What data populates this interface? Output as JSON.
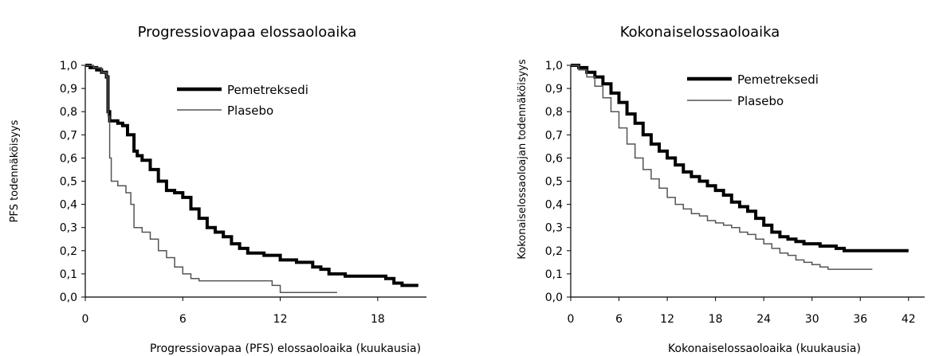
{
  "chart_data": [
    {
      "type": "line",
      "title": "Progressiovapaa elossaoloaika",
      "xlabel": "Progressiovapaa (PFS) elossaoloaika (kuukausia)",
      "ylabel": "PFS todennäköisyys",
      "xlim": [
        0,
        21
      ],
      "ylim": [
        0,
        1
      ],
      "x_ticks": [
        0,
        6,
        12,
        18
      ],
      "x_tick_labels": [
        "0",
        "6",
        "12",
        "18"
      ],
      "y_ticks": [
        0,
        0.1,
        0.2,
        0.3,
        0.4,
        0.5,
        0.6,
        0.7,
        0.8,
        0.9,
        1.0
      ],
      "y_tick_labels": [
        "0,0",
        "0,1",
        "0,2",
        "0,3",
        "0,4",
        "0,5",
        "0,6",
        "0,7",
        "0,8",
        "0,9",
        "1,0"
      ],
      "grid": false,
      "legend_position": "top-right",
      "step": true,
      "series": [
        {
          "name": "Pemetreksedi",
          "color": "#000000",
          "width": "thick",
          "x": [
            0,
            0.3,
            0.7,
            1.0,
            1.3,
            1.4,
            1.5,
            2.0,
            2.3,
            2.6,
            3.0,
            3.2,
            3.5,
            4.0,
            4.5,
            5.0,
            5.5,
            6.0,
            6.5,
            7.0,
            7.5,
            8.0,
            8.5,
            9.0,
            9.5,
            10.0,
            11.0,
            12.0,
            13.0,
            14.0,
            14.5,
            15.0,
            16.0,
            17.0,
            18.0,
            18.5,
            19.0,
            19.5,
            20.5
          ],
          "y": [
            1.0,
            0.99,
            0.98,
            0.97,
            0.95,
            0.8,
            0.76,
            0.75,
            0.74,
            0.7,
            0.63,
            0.61,
            0.59,
            0.55,
            0.5,
            0.46,
            0.45,
            0.43,
            0.38,
            0.34,
            0.3,
            0.28,
            0.26,
            0.23,
            0.21,
            0.19,
            0.18,
            0.16,
            0.15,
            0.13,
            0.12,
            0.1,
            0.09,
            0.09,
            0.09,
            0.08,
            0.06,
            0.05,
            0.05
          ]
        },
        {
          "name": "Plasebo",
          "color": "#555555",
          "width": "thin",
          "x": [
            0,
            0.5,
            1.0,
            1.3,
            1.4,
            1.5,
            1.6,
            2.0,
            2.5,
            2.8,
            3.0,
            3.5,
            4.0,
            4.5,
            5.0,
            5.5,
            6.0,
            6.5,
            7.0,
            8.0,
            9.0,
            10.0,
            11.5,
            12.0,
            12.5,
            15.5
          ],
          "y": [
            1.0,
            0.99,
            0.97,
            0.95,
            0.78,
            0.6,
            0.5,
            0.48,
            0.45,
            0.4,
            0.3,
            0.28,
            0.25,
            0.2,
            0.17,
            0.13,
            0.1,
            0.08,
            0.07,
            0.07,
            0.07,
            0.07,
            0.05,
            0.02,
            0.02,
            0.02
          ]
        }
      ]
    },
    {
      "type": "line",
      "title": "Kokonaiselossaoloaika",
      "xlabel": "Kokonaiselossaoloaika (kuukausia)",
      "ylabel": "Kokonaiselossaoloajan todennäköisyys",
      "xlim": [
        0,
        44
      ],
      "ylim": [
        0,
        1
      ],
      "x_ticks": [
        0,
        6,
        12,
        18,
        24,
        30,
        36,
        42
      ],
      "x_tick_labels": [
        "0",
        "6",
        "12",
        "18",
        "24",
        "30",
        "36",
        "42"
      ],
      "y_ticks": [
        0,
        0.1,
        0.2,
        0.3,
        0.4,
        0.5,
        0.6,
        0.7,
        0.8,
        0.9,
        1.0
      ],
      "y_tick_labels": [
        "0,0",
        "0,1",
        "0,2",
        "0,3",
        "0,4",
        "0,5",
        "0,6",
        "0,7",
        "0,8",
        "0,9",
        "1,0"
      ],
      "grid": false,
      "legend_position": "top-right",
      "step": true,
      "series": [
        {
          "name": "Pemetreksedi",
          "color": "#000000",
          "width": "thick",
          "x": [
            0,
            1,
            2,
            3,
            4,
            5,
            6,
            7,
            8,
            9,
            10,
            11,
            12,
            13,
            14,
            15,
            16,
            17,
            18,
            19,
            20,
            21,
            22,
            23,
            24,
            25,
            26,
            27,
            28,
            29,
            30,
            31,
            32,
            33,
            34,
            36,
            38,
            40,
            42
          ],
          "y": [
            1.0,
            0.99,
            0.97,
            0.95,
            0.92,
            0.88,
            0.84,
            0.79,
            0.75,
            0.7,
            0.66,
            0.63,
            0.6,
            0.57,
            0.54,
            0.52,
            0.5,
            0.48,
            0.46,
            0.44,
            0.41,
            0.39,
            0.37,
            0.34,
            0.31,
            0.28,
            0.26,
            0.25,
            0.24,
            0.23,
            0.23,
            0.22,
            0.22,
            0.21,
            0.2,
            0.2,
            0.2,
            0.2,
            0.2
          ]
        },
        {
          "name": "Plasebo",
          "color": "#555555",
          "width": "thin",
          "x": [
            0,
            1,
            2,
            3,
            4,
            5,
            6,
            7,
            8,
            9,
            10,
            11,
            12,
            13,
            14,
            15,
            16,
            17,
            18,
            19,
            20,
            21,
            22,
            23,
            24,
            25,
            26,
            27,
            28,
            29,
            30,
            31,
            32,
            34,
            36,
            37.5
          ],
          "y": [
            1.0,
            0.98,
            0.95,
            0.91,
            0.86,
            0.8,
            0.73,
            0.66,
            0.6,
            0.55,
            0.51,
            0.47,
            0.43,
            0.4,
            0.38,
            0.36,
            0.35,
            0.33,
            0.32,
            0.31,
            0.3,
            0.28,
            0.27,
            0.25,
            0.23,
            0.21,
            0.19,
            0.18,
            0.16,
            0.15,
            0.14,
            0.13,
            0.12,
            0.12,
            0.12,
            0.12
          ]
        }
      ]
    }
  ]
}
